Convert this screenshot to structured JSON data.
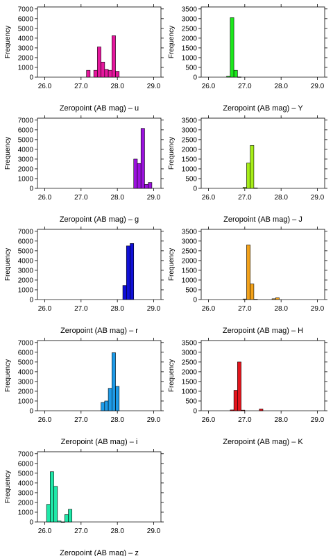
{
  "chart_data": [
    {
      "type": "bar",
      "title": "",
      "xlabel": "Zeropoint (AB mag) – u",
      "ylabel": "Frequency",
      "color": "#E6179E",
      "xlim": [
        25.8,
        29.2
      ],
      "ylim": [
        0,
        7200
      ],
      "xticks": [
        26.0,
        27.0,
        28.0,
        29.0
      ],
      "xtick_labels": [
        "26.0",
        "27.0",
        "28.0",
        "29.0"
      ],
      "yticks": [
        0,
        1000,
        2000,
        3000,
        4000,
        5000,
        6000,
        7000
      ],
      "ytick_labels": [
        "0",
        "1000",
        "2000",
        "3000",
        "4000",
        "5000",
        "6000",
        "7000"
      ],
      "bin_width": 0.1,
      "bins": [
        {
          "x0": 27.15,
          "x1": 27.25,
          "y": 700
        },
        {
          "x0": 27.35,
          "x1": 27.45,
          "y": 700
        },
        {
          "x0": 27.45,
          "x1": 27.55,
          "y": 3100
        },
        {
          "x0": 27.55,
          "x1": 27.65,
          "y": 1550
        },
        {
          "x0": 27.65,
          "x1": 27.75,
          "y": 800
        },
        {
          "x0": 27.75,
          "x1": 27.85,
          "y": 700
        },
        {
          "x0": 27.85,
          "x1": 27.95,
          "y": 4250
        },
        {
          "x0": 27.95,
          "x1": 28.05,
          "y": 600
        }
      ]
    },
    {
      "type": "bar",
      "title": "",
      "xlabel": "Zeropoint (AB mag) – Y",
      "ylabel": "Frequency",
      "color": "#1CE81C",
      "xlim": [
        25.8,
        29.2
      ],
      "ylim": [
        0,
        3600
      ],
      "xticks": [
        26.0,
        27.0,
        28.0,
        29.0
      ],
      "xtick_labels": [
        "26.0",
        "27.0",
        "28.0",
        "29.0"
      ],
      "yticks": [
        0,
        500,
        1000,
        1500,
        2000,
        2500,
        3000,
        3500
      ],
      "ytick_labels": [
        "0",
        "500",
        "1000",
        "1500",
        "2000",
        "2500",
        "3000",
        "3500"
      ],
      "bin_width": 0.1,
      "bins": [
        {
          "x0": 26.5,
          "x1": 26.6,
          "y": 50
        },
        {
          "x0": 26.6,
          "x1": 26.7,
          "y": 3050
        },
        {
          "x0": 26.7,
          "x1": 26.8,
          "y": 350
        },
        {
          "x0": 26.8,
          "x1": 26.9,
          "y": 10
        }
      ]
    },
    {
      "type": "bar",
      "title": "",
      "xlabel": "Zeropoint (AB mag) – g",
      "ylabel": "Frequency",
      "color": "#9B12DE",
      "xlim": [
        25.8,
        29.2
      ],
      "ylim": [
        0,
        7200
      ],
      "xticks": [
        26.0,
        27.0,
        28.0,
        29.0
      ],
      "xtick_labels": [
        "26.0",
        "27.0",
        "28.0",
        "29.0"
      ],
      "yticks": [
        0,
        1000,
        2000,
        3000,
        4000,
        5000,
        6000,
        7000
      ],
      "ytick_labels": [
        "0",
        "1000",
        "2000",
        "3000",
        "4000",
        "5000",
        "6000",
        "7000"
      ],
      "bin_width": 0.1,
      "bins": [
        {
          "x0": 28.45,
          "x1": 28.55,
          "y": 3000
        },
        {
          "x0": 28.55,
          "x1": 28.65,
          "y": 2550
        },
        {
          "x0": 28.65,
          "x1": 28.75,
          "y": 6150
        },
        {
          "x0": 28.75,
          "x1": 28.85,
          "y": 400
        },
        {
          "x0": 28.85,
          "x1": 28.95,
          "y": 600
        }
      ]
    },
    {
      "type": "bar",
      "title": "",
      "xlabel": "Zeropoint (AB mag) – J",
      "ylabel": "Frequency",
      "color": "#A6EE18",
      "xlim": [
        25.8,
        29.2
      ],
      "ylim": [
        0,
        3600
      ],
      "xticks": [
        26.0,
        27.0,
        28.0,
        29.0
      ],
      "xtick_labels": [
        "26.0",
        "27.0",
        "28.0",
        "29.0"
      ],
      "yticks": [
        0,
        500,
        1000,
        1500,
        2000,
        2500,
        3000,
        3500
      ],
      "ytick_labels": [
        "0",
        "500",
        "1000",
        "1500",
        "2000",
        "2500",
        "3000",
        "3500"
      ],
      "bin_width": 0.1,
      "bins": [
        {
          "x0": 26.95,
          "x1": 27.05,
          "y": 50
        },
        {
          "x0": 27.05,
          "x1": 27.15,
          "y": 1300
        },
        {
          "x0": 27.15,
          "x1": 27.25,
          "y": 2200
        },
        {
          "x0": 27.25,
          "x1": 27.35,
          "y": 20
        }
      ]
    },
    {
      "type": "bar",
      "title": "",
      "xlabel": "Zeropoint (AB mag) – r",
      "ylabel": "Frequency",
      "color": "#1010D8",
      "xlim": [
        25.8,
        29.2
      ],
      "ylim": [
        0,
        7200
      ],
      "xticks": [
        26.0,
        27.0,
        28.0,
        29.0
      ],
      "xtick_labels": [
        "26.0",
        "27.0",
        "28.0",
        "29.0"
      ],
      "yticks": [
        0,
        1000,
        2000,
        3000,
        4000,
        5000,
        6000,
        7000
      ],
      "ytick_labels": [
        "0",
        "1000",
        "2000",
        "3000",
        "4000",
        "5000",
        "6000",
        "7000"
      ],
      "bin_width": 0.1,
      "bins": [
        {
          "x0": 28.15,
          "x1": 28.25,
          "y": 1450
        },
        {
          "x0": 28.25,
          "x1": 28.35,
          "y": 5500
        },
        {
          "x0": 28.35,
          "x1": 28.45,
          "y": 5750
        }
      ]
    },
    {
      "type": "bar",
      "title": "",
      "xlabel": "Zeropoint (AB mag) – H",
      "ylabel": "Frequency",
      "color": "#F3A21B",
      "xlim": [
        25.8,
        29.2
      ],
      "ylim": [
        0,
        3600
      ],
      "xticks": [
        26.0,
        27.0,
        28.0,
        29.0
      ],
      "xtick_labels": [
        "26.0",
        "27.0",
        "28.0",
        "29.0"
      ],
      "yticks": [
        0,
        500,
        1000,
        1500,
        2000,
        2500,
        3000,
        3500
      ],
      "ytick_labels": [
        "0",
        "500",
        "1000",
        "1500",
        "2000",
        "2500",
        "3000",
        "3500"
      ],
      "bin_width": 0.1,
      "bins": [
        {
          "x0": 26.95,
          "x1": 27.05,
          "y": 30
        },
        {
          "x0": 27.05,
          "x1": 27.15,
          "y": 2800
        },
        {
          "x0": 27.15,
          "x1": 27.25,
          "y": 800
        },
        {
          "x0": 27.25,
          "x1": 27.35,
          "y": 15
        },
        {
          "x0": 27.75,
          "x1": 27.85,
          "y": 40
        },
        {
          "x0": 27.85,
          "x1": 27.95,
          "y": 90
        }
      ]
    },
    {
      "type": "bar",
      "title": "",
      "xlabel": "Zeropoint (AB mag) – i",
      "ylabel": "Frequency",
      "color": "#1E9BE8",
      "xlim": [
        25.8,
        29.2
      ],
      "ylim": [
        0,
        7200
      ],
      "xticks": [
        26.0,
        27.0,
        28.0,
        29.0
      ],
      "xtick_labels": [
        "26.0",
        "27.0",
        "28.0",
        "29.0"
      ],
      "yticks": [
        0,
        1000,
        2000,
        3000,
        4000,
        5000,
        6000,
        7000
      ],
      "ytick_labels": [
        "0",
        "1000",
        "2000",
        "3000",
        "4000",
        "5000",
        "6000",
        "7000"
      ],
      "bin_width": 0.1,
      "bins": [
        {
          "x0": 27.55,
          "x1": 27.65,
          "y": 850
        },
        {
          "x0": 27.65,
          "x1": 27.75,
          "y": 1000
        },
        {
          "x0": 27.75,
          "x1": 27.85,
          "y": 2300
        },
        {
          "x0": 27.85,
          "x1": 27.95,
          "y": 5950
        },
        {
          "x0": 27.95,
          "x1": 28.05,
          "y": 2500
        }
      ]
    },
    {
      "type": "bar",
      "title": "",
      "xlabel": "Zeropoint (AB mag) – K",
      "ylabel": "Frequency",
      "color": "#E3141C",
      "xlim": [
        25.8,
        29.2
      ],
      "ylim": [
        0,
        3600
      ],
      "xticks": [
        26.0,
        27.0,
        28.0,
        29.0
      ],
      "xtick_labels": [
        "26.0",
        "27.0",
        "28.0",
        "29.0"
      ],
      "yticks": [
        0,
        500,
        1000,
        1500,
        2000,
        2500,
        3000,
        3500
      ],
      "ytick_labels": [
        "0",
        "500",
        "1000",
        "1500",
        "2000",
        "2500",
        "3000",
        "3500"
      ],
      "bin_width": 0.1,
      "bins": [
        {
          "x0": 26.6,
          "x1": 26.7,
          "y": 40
        },
        {
          "x0": 26.7,
          "x1": 26.8,
          "y": 1050
        },
        {
          "x0": 26.8,
          "x1": 26.9,
          "y": 2500
        },
        {
          "x0": 26.9,
          "x1": 27.0,
          "y": 30
        },
        {
          "x0": 27.4,
          "x1": 27.5,
          "y": 90
        }
      ]
    },
    {
      "type": "bar",
      "title": "",
      "xlabel": "Zeropoint (AB mag) – z",
      "ylabel": "Frequency",
      "color": "#1FE8A8",
      "xlim": [
        25.8,
        29.2
      ],
      "ylim": [
        0,
        7200
      ],
      "xticks": [
        26.0,
        27.0,
        28.0,
        29.0
      ],
      "xtick_labels": [
        "26.0",
        "27.0",
        "28.0",
        "29.0"
      ],
      "yticks": [
        0,
        1000,
        2000,
        3000,
        4000,
        5000,
        6000,
        7000
      ],
      "ytick_labels": [
        "0",
        "1000",
        "2000",
        "3000",
        "4000",
        "5000",
        "6000",
        "7000"
      ],
      "bin_width": 0.1,
      "bins": [
        {
          "x0": 26.05,
          "x1": 26.15,
          "y": 1800
        },
        {
          "x0": 26.15,
          "x1": 26.25,
          "y": 5150
        },
        {
          "x0": 26.25,
          "x1": 26.35,
          "y": 3650
        },
        {
          "x0": 26.35,
          "x1": 26.45,
          "y": 100
        },
        {
          "x0": 26.45,
          "x1": 26.55,
          "y": 0
        },
        {
          "x0": 26.55,
          "x1": 26.65,
          "y": 750
        },
        {
          "x0": 26.65,
          "x1": 26.75,
          "y": 1300
        }
      ]
    }
  ]
}
